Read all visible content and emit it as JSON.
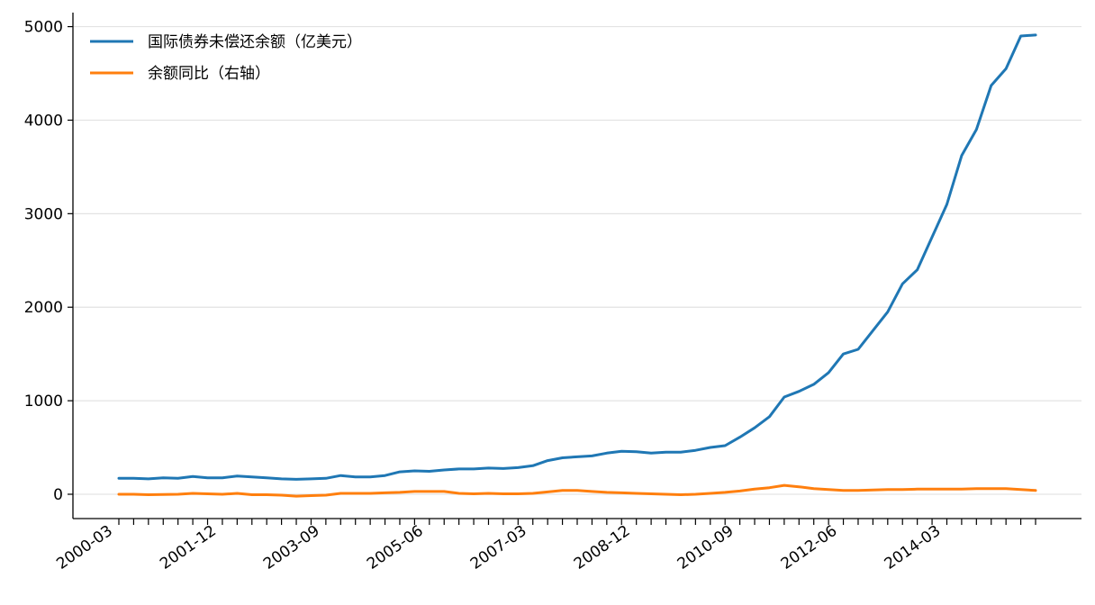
{
  "chart_data": {
    "type": "line",
    "title": "",
    "xlabel": "",
    "ylabel": "",
    "ylim": [
      -260,
      5150
    ],
    "yticks": [
      0,
      1000,
      2000,
      3000,
      4000,
      5000
    ],
    "grid": "horizontal",
    "legend_position": "top-left",
    "x": [
      "2000-03",
      "2000-06",
      "2000-09",
      "2000-12",
      "2001-03",
      "2001-06",
      "2001-09",
      "2001-12",
      "2002-03",
      "2002-06",
      "2002-09",
      "2002-12",
      "2003-03",
      "2003-06",
      "2003-09",
      "2003-12",
      "2004-03",
      "2004-06",
      "2004-09",
      "2004-12",
      "2005-03",
      "2005-06",
      "2005-09",
      "2005-12",
      "2006-03",
      "2006-06",
      "2006-09",
      "2006-12",
      "2007-03",
      "2007-06",
      "2007-09",
      "2007-12",
      "2008-03",
      "2008-06",
      "2008-09",
      "2008-12",
      "2009-03",
      "2009-06",
      "2009-09",
      "2009-12",
      "2010-03",
      "2010-06",
      "2010-09",
      "2010-12",
      "2011-03",
      "2011-06",
      "2011-09",
      "2011-12",
      "2012-03",
      "2012-06",
      "2012-09",
      "2012-12",
      "2013-03",
      "2013-06",
      "2013-09",
      "2013-12",
      "2014-03",
      "2014-06",
      "2014-09",
      "2014-12",
      "2015-03",
      "2015-06",
      "2015-09"
    ],
    "x_tick_labels": [
      "2000-03",
      "2001-12",
      "2003-09",
      "2005-06",
      "2007-03",
      "2008-12",
      "2010-09",
      "2012-06",
      "2014-03"
    ],
    "x_tick_label_indices": [
      0,
      7,
      14,
      21,
      28,
      35,
      42,
      49,
      56
    ],
    "series": [
      {
        "name": "国际债券未偿还余额（亿美元）",
        "color": "#1f77b4",
        "values": [
          170,
          170,
          165,
          175,
          170,
          190,
          175,
          175,
          195,
          185,
          175,
          165,
          160,
          165,
          170,
          200,
          185,
          185,
          200,
          240,
          250,
          245,
          260,
          270,
          270,
          280,
          275,
          285,
          305,
          360,
          390,
          400,
          410,
          440,
          460,
          455,
          440,
          450,
          450,
          470,
          500,
          520,
          610,
          710,
          830,
          1040,
          1100,
          1175,
          1300,
          1500,
          1550,
          1750,
          1950,
          2250,
          2400,
          2750,
          3100,
          3620,
          3900,
          4370,
          4550,
          4900,
          4910
        ]
      },
      {
        "name": "余额同比（右轴）",
        "color": "#ff7f0e",
        "values": [
          0,
          0,
          -5,
          -3,
          0,
          10,
          5,
          0,
          10,
          -5,
          -5,
          -10,
          -20,
          -15,
          -10,
          10,
          10,
          10,
          15,
          20,
          30,
          30,
          30,
          10,
          5,
          10,
          5,
          5,
          10,
          25,
          40,
          40,
          30,
          20,
          15,
          10,
          5,
          0,
          -5,
          0,
          10,
          20,
          35,
          55,
          70,
          95,
          80,
          60,
          50,
          40,
          40,
          45,
          50,
          50,
          55,
          55,
          55,
          55,
          60,
          60,
          60,
          50,
          40
        ]
      }
    ]
  }
}
